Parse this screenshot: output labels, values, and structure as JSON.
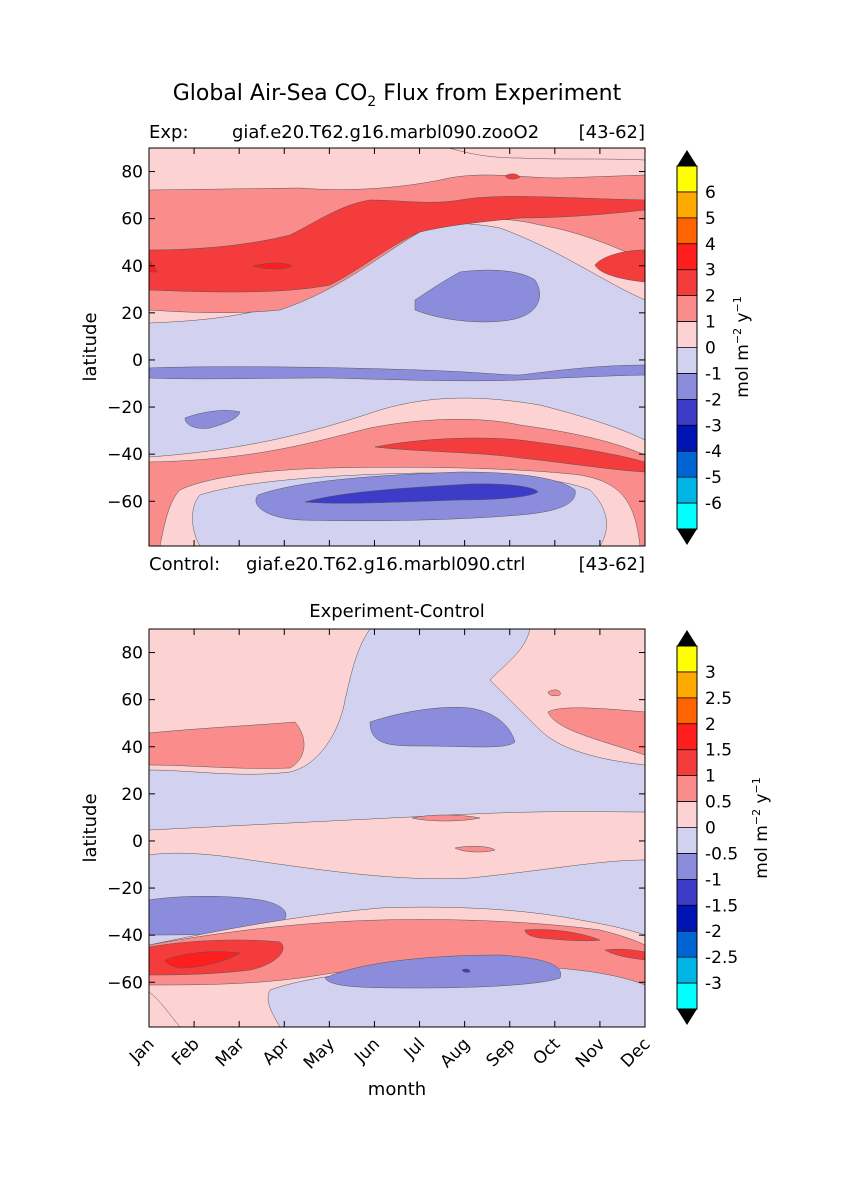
{
  "figure": {
    "title_prefix": "Global Air-Sea CO",
    "title_sub": "2",
    "title_suffix": " Flux from Experiment",
    "exp_label": "Exp:",
    "exp_name": "giaf.e20.T62.g16.marbl090.zooO2",
    "exp_years": "[43-62]",
    "ctrl_label": "Control:",
    "ctrl_name": "giaf.e20.T62.g16.marbl090.ctrl",
    "ctrl_years": "[43-62]",
    "diff_title": "Experiment-Control",
    "xlabel": "month",
    "ylabel": "latitude",
    "cbar_unit": "mol m",
    "cbar_exp1": "−2",
    "cbar_mid": " y",
    "cbar_exp2": "−1"
  },
  "chart_data": [
    {
      "type": "heatmap",
      "panel": "experiment",
      "x_categories": [
        "Jan",
        "Feb",
        "Mar",
        "Apr",
        "May",
        "Jun",
        "Jul",
        "Aug",
        "Sep",
        "Oct",
        "Nov",
        "Dec"
      ],
      "y_ticks": [
        80,
        60,
        40,
        20,
        0,
        -20,
        -40,
        -60
      ],
      "ylim": [
        -79,
        90
      ],
      "colorbar": {
        "levels": [
          -6.5,
          -5.5,
          -4.5,
          -3.5,
          -2.5,
          -1.5,
          -0.5,
          0.5,
          1.5,
          2.5,
          3.5,
          4.5,
          5.5,
          6.5
        ],
        "labels": [
          "-6",
          "-5",
          "-4",
          "-3",
          "-2",
          "-1",
          "0",
          "1",
          "2",
          "3",
          "4",
          "5",
          "6"
        ],
        "colors": [
          "#00ffff",
          "#00b4e6",
          "#0064d2",
          "#0014b4",
          "#3c3cc8",
          "#8c8cdc",
          "#d2d2f0",
          "#fcd2d2",
          "#fa8c8c",
          "#f53c3c",
          "#ff1e1e",
          "#ff6400",
          "#ffaa00",
          "#ffff00"
        ],
        "extend": "both"
      },
      "features": [
        {
          "lat": 40,
          "month": "Feb",
          "value": 3.0
        },
        {
          "lat": 65,
          "month": "Aug",
          "value": 2.0
        },
        {
          "lat": 25,
          "month": "Aug",
          "value": -1.0
        },
        {
          "lat": -5,
          "month": "Jun",
          "value": -1.0
        },
        {
          "lat": -25,
          "month": "Feb",
          "value": -1.0
        },
        {
          "lat": -40,
          "month": "Oct",
          "value": 2.0
        },
        {
          "lat": -58,
          "month": "Aug",
          "value": -2.0
        }
      ]
    },
    {
      "type": "heatmap",
      "panel": "difference",
      "x_categories": [
        "Jan",
        "Feb",
        "Mar",
        "Apr",
        "May",
        "Jun",
        "Jul",
        "Aug",
        "Sep",
        "Oct",
        "Nov",
        "Dec"
      ],
      "y_ticks": [
        80,
        60,
        40,
        20,
        0,
        -20,
        -40,
        -60
      ],
      "ylim": [
        -79,
        90
      ],
      "colorbar": {
        "levels": [
          -3.25,
          -2.75,
          -2.25,
          -1.75,
          -1.25,
          -0.75,
          -0.25,
          0.25,
          0.75,
          1.25,
          1.75,
          2.25,
          2.75,
          3.25
        ],
        "labels": [
          "-3",
          "-2.5",
          "-2",
          "-1.5",
          "-1",
          "-0.5",
          "0",
          "0.5",
          "1",
          "1.5",
          "2",
          "2.5",
          "3"
        ],
        "colors": [
          "#00ffff",
          "#00b4e6",
          "#0064d2",
          "#0014b4",
          "#3c3cc8",
          "#8c8cdc",
          "#d2d2f0",
          "#fcd2d2",
          "#fa8c8c",
          "#f53c3c",
          "#ff1e1e",
          "#ff6400",
          "#ffaa00",
          "#ffff00"
        ],
        "extend": "both"
      },
      "features": [
        {
          "lat": 45,
          "month": "Feb",
          "value": 0.5
        },
        {
          "lat": 47,
          "month": "Aug",
          "value": -0.5
        },
        {
          "lat": -30,
          "month": "Feb",
          "value": -0.5
        },
        {
          "lat": -52,
          "month": "Feb",
          "value": 1.5
        },
        {
          "lat": -60,
          "month": "Aug",
          "value": -0.5
        },
        {
          "lat": 48,
          "month": "Dec",
          "value": 0.5
        }
      ]
    }
  ]
}
